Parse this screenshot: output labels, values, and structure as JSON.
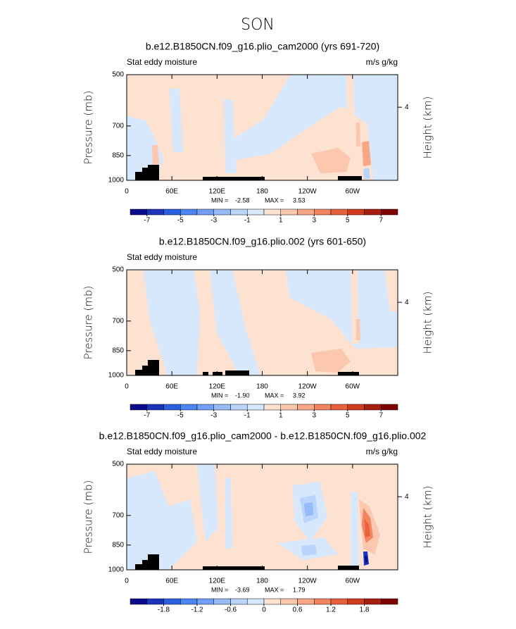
{
  "title": "SON",
  "chart_data": [
    {
      "type": "contour",
      "title": "b.e12.B1850CN.f09_g16.plio_cam2000 (yrs 691-720)",
      "left_label": "Stat eddy moisture",
      "right_label": "m/s g/kg",
      "ylabel": "Pressure (mb)",
      "y2label": "Height (km)",
      "xlim": [
        0,
        360
      ],
      "xticks": [
        0,
        {
          "value": 60,
          "label": "60E"
        },
        {
          "value": 120,
          "label": "120E"
        },
        180,
        {
          "value": 240,
          "label": "120W"
        },
        {
          "value": 300,
          "label": "60W"
        }
      ],
      "ylim": [
        1000,
        500
      ],
      "ylog": true,
      "yticks": [
        500,
        700,
        850,
        1000
      ],
      "y2lim": [
        0,
        5.78
      ],
      "y2ticks": [
        4
      ],
      "min_label": "MIN =",
      "min": -2.58,
      "max_label": "MAX =",
      "max": 3.53,
      "colorbar_lim": [
        -8,
        8
      ],
      "colorbar_ticks": [
        -7,
        -5,
        -3,
        -1,
        1,
        3,
        5,
        7
      ],
      "colors": [
        "#0a0a8c",
        "#1a34bc",
        "#2b5fe2",
        "#4c84f1",
        "#729ff5",
        "#97baf8",
        "#bad4fb",
        "#d7e7fc",
        "#fde1d1",
        "#fbc7ae",
        "#f7a786",
        "#f28460",
        "#e9613c",
        "#d03a1d",
        "#a81c0c",
        "#7f0000"
      ]
    },
    {
      "type": "contour",
      "title": "b.e12.B1850CN.f09_g16.plio.002 (yrs 601-650)",
      "left_label": "Stat eddy moisture",
      "ylabel": "Pressure (mb)",
      "y2label": "Height (km)",
      "xlim": [
        0,
        360
      ],
      "xticks": [
        0,
        {
          "value": 60,
          "label": "60E"
        },
        {
          "value": 120,
          "label": "120E"
        },
        180,
        {
          "value": 240,
          "label": "120W"
        },
        {
          "value": 300,
          "label": "60W"
        }
      ],
      "ylim": [
        1000,
        500
      ],
      "ylog": true,
      "yticks": [
        500,
        700,
        850,
        1000
      ],
      "y2lim": [
        0,
        5.78
      ],
      "y2ticks": [
        4
      ],
      "min_label": "MIN =",
      "min": {
        "value": -1.9,
        "label": "-1.90"
      },
      "max_label": "MAX =",
      "max": 3.92,
      "colorbar_lim": [
        -8,
        8
      ],
      "colorbar_ticks": [
        -7,
        -5,
        -3,
        -1,
        1,
        3,
        5,
        7
      ],
      "colors": [
        "#0a0a8c",
        "#1a34bc",
        "#2b5fe2",
        "#4c84f1",
        "#729ff5",
        "#97baf8",
        "#bad4fb",
        "#d7e7fc",
        "#fde1d1",
        "#fbc7ae",
        "#f7a786",
        "#f28460",
        "#e9613c",
        "#d03a1d",
        "#a81c0c",
        "#7f0000"
      ]
    },
    {
      "type": "contour",
      "title": "b.e12.B1850CN.f09_g16.plio_cam2000 - b.e12.B1850CN.f09_g16.plio.002",
      "left_label": "Stat eddy moisture",
      "right_label": "m/s g/kg",
      "ylabel": "Pressure (mb)",
      "y2label": "Height (km)",
      "xlim": [
        0,
        360
      ],
      "xticks": [
        0,
        {
          "value": 60,
          "label": "60E"
        },
        {
          "value": 120,
          "label": "120E"
        },
        180,
        {
          "value": 240,
          "label": "120W"
        },
        {
          "value": 300,
          "label": "60W"
        }
      ],
      "ylim": [
        1000,
        500
      ],
      "ylog": true,
      "yticks": [
        500,
        700,
        850,
        1000
      ],
      "y2lim": [
        0,
        5.78
      ],
      "y2ticks": [
        4
      ],
      "min_label": "MIN =",
      "min": -3.69,
      "max_label": "MAX =",
      "max": 1.79,
      "colorbar_lim": [
        -2.4,
        2.4
      ],
      "colorbar_ticks": [
        -1.8,
        -1.2,
        -0.6,
        0,
        0.6,
        1.2,
        1.8
      ],
      "colors": [
        "#0a0a8c",
        "#1a34bc",
        "#2b5fe2",
        "#4c84f1",
        "#729ff5",
        "#97baf8",
        "#bad4fb",
        "#d7e7fc",
        "#fde1d1",
        "#fbc7ae",
        "#f7a786",
        "#f28460",
        "#e9613c",
        "#d03a1d",
        "#a81c0c",
        "#7f0000"
      ]
    }
  ]
}
